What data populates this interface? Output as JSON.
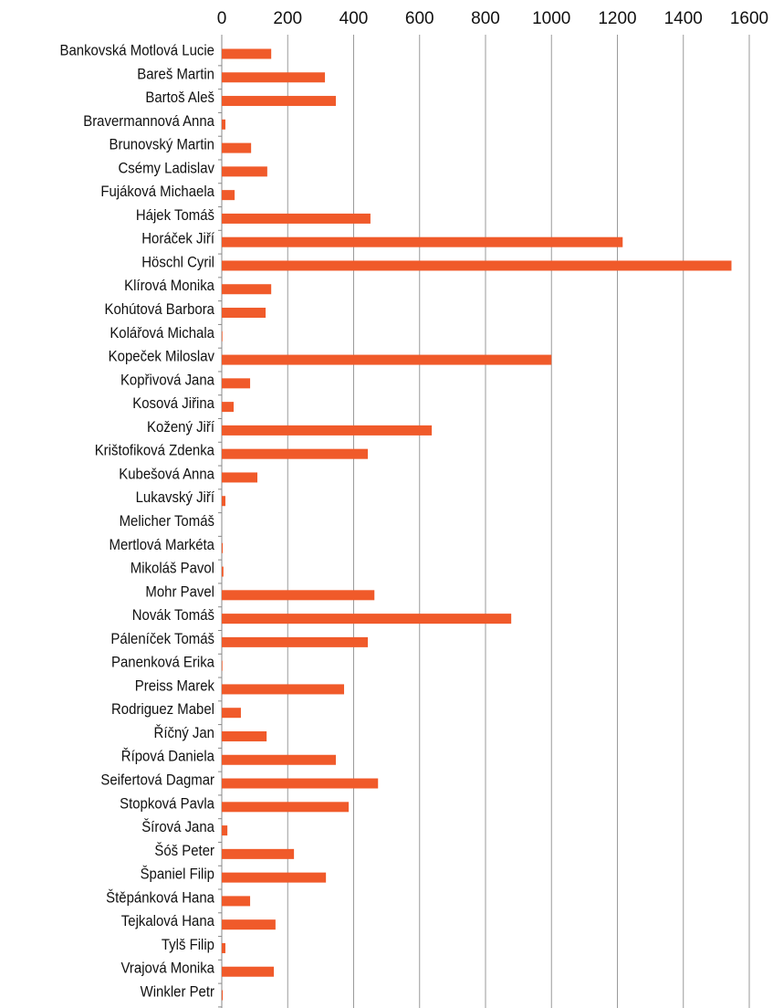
{
  "chart_data": {
    "type": "bar",
    "orientation": "horizontal",
    "color": "#f05a2a",
    "grid": true,
    "categories": [
      "Bankovská Motlová Lucie",
      "Bareš Martin",
      "Bartoš Aleš",
      "Bravermannová Anna",
      "Brunovský Martin",
      "Csémy Ladislav",
      "Fujáková Michaela",
      "Hájek Tomáš",
      "Horáček Jiří",
      "Höschl Cyril",
      "Klírová Monika",
      "Kohútová Barbora",
      "Kolářová Michala",
      "Kopeček Miloslav",
      "Kopřivová Jana",
      "Kosová Jiřina",
      "Kožený Jiří",
      "Krištofiková Zdenka",
      "Kubešová Anna",
      "Lukavský Jiří",
      "Melicher Tomáš",
      "Mertlová Markéta",
      "Mikoláš Pavol",
      "Mohr Pavel",
      "Novák Tomáš",
      "Páleníček Tomáš",
      "Panenková Erika",
      "Preiss Marek",
      "Rodriguez Mabel",
      "Říčný Jan",
      "Řípová Daniela",
      "Seifertová Dagmar",
      "Stopková Pavla",
      "Šírová Jana",
      "Šóš Peter",
      "Španiel Filip",
      "Štěpánková Hana",
      "Tejkalová Hana",
      "Tylš Filip",
      "Vrajová Monika",
      "Winkler Petr"
    ],
    "values": [
      150,
      313,
      346,
      11,
      89,
      138,
      39,
      451,
      1216,
      1546,
      150,
      133,
      2,
      1000,
      86,
      36,
      637,
      443,
      108,
      11,
      0,
      3,
      5,
      463,
      878,
      443,
      2,
      371,
      58,
      136,
      346,
      474,
      385,
      17,
      219,
      316,
      86,
      163,
      11,
      158,
      3
    ],
    "xlim": [
      0,
      1600
    ],
    "xticks": [
      0,
      200,
      400,
      600,
      800,
      1000,
      1200,
      1400,
      1600
    ]
  }
}
